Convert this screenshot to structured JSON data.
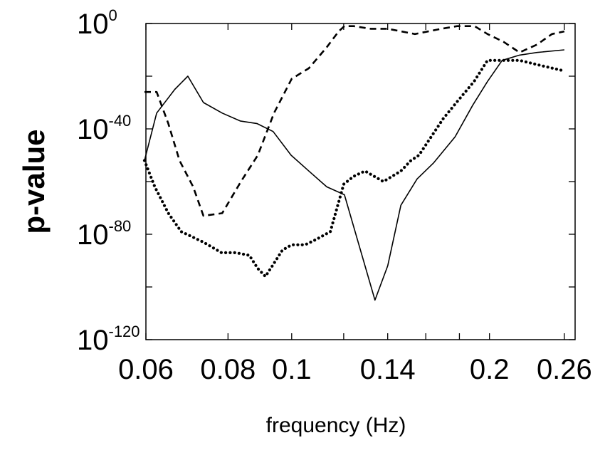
{
  "chart_data": {
    "type": "line",
    "xlabel": "frequency (Hz)",
    "ylabel": "p-value",
    "x_scale": "log",
    "y_scale": "log",
    "xlim": [
      0.06,
      0.27
    ],
    "ylim_exponent": [
      -120,
      0
    ],
    "x_ticks": [
      {
        "value": 0.06,
        "label": "0.06"
      },
      {
        "value": 0.08,
        "label": "0.08"
      },
      {
        "value": 0.1,
        "label": "0.1"
      },
      {
        "value": 0.14,
        "label": "0.14"
      },
      {
        "value": 0.2,
        "label": "0.2"
      },
      {
        "value": 0.26,
        "label": "0.26"
      }
    ],
    "x_minor_ticks": [
      0.12,
      0.16,
      0.18
    ],
    "y_ticks": [
      {
        "exponent": 0,
        "base": "10",
        "exp_label": "0"
      },
      {
        "exponent": -40,
        "base": "10",
        "exp_label": "-40"
      },
      {
        "exponent": -80,
        "base": "10",
        "exp_label": "-80"
      },
      {
        "exponent": -120,
        "base": "10",
        "exp_label": "-120"
      }
    ],
    "y_minor_ticks": [
      -20,
      -60,
      -100
    ],
    "grid": false,
    "legend": "none",
    "series": [
      {
        "style": "solid",
        "points": [
          [
            0.0597,
            -52
          ],
          [
            0.0623,
            -34
          ],
          [
            0.0664,
            -25
          ],
          [
            0.0695,
            -20
          ],
          [
            0.0734,
            -30
          ],
          [
            0.0784,
            -34
          ],
          [
            0.0835,
            -37
          ],
          [
            0.0886,
            -38
          ],
          [
            0.0937,
            -41
          ],
          [
            0.0998,
            -50
          ],
          [
            0.1062,
            -56
          ],
          [
            0.1131,
            -62
          ],
          [
            0.1203,
            -65
          ],
          [
            0.1339,
            -105
          ],
          [
            0.14,
            -92
          ],
          [
            0.1466,
            -69
          ],
          [
            0.1552,
            -59
          ],
          [
            0.1643,
            -53
          ],
          [
            0.1773,
            -43
          ],
          [
            0.1886,
            -31
          ],
          [
            0.1986,
            -22
          ],
          [
            0.2091,
            -14
          ],
          [
            0.2222,
            -12
          ],
          [
            0.2362,
            -11
          ],
          [
            0.26,
            -10
          ]
        ]
      },
      {
        "style": "dashed",
        "points": [
          [
            0.0597,
            -26
          ],
          [
            0.0623,
            -26
          ],
          [
            0.0649,
            -38
          ],
          [
            0.0675,
            -52
          ],
          [
            0.0708,
            -62
          ],
          [
            0.0734,
            -73
          ],
          [
            0.0784,
            -72
          ],
          [
            0.0837,
            -60
          ],
          [
            0.0888,
            -50
          ],
          [
            0.094,
            -34
          ],
          [
            0.1,
            -21
          ],
          [
            0.1062,
            -17
          ],
          [
            0.1131,
            -9
          ],
          [
            0.1179,
            -3
          ],
          [
            0.1203,
            -1
          ],
          [
            0.1243,
            -1
          ],
          [
            0.1318,
            -2
          ],
          [
            0.14,
            -2
          ],
          [
            0.154,
            -4
          ],
          [
            0.169,
            -2
          ],
          [
            0.1786,
            -1
          ],
          [
            0.1898,
            -1
          ],
          [
            0.1986,
            -4
          ],
          [
            0.2103,
            -7
          ],
          [
            0.2222,
            -11
          ],
          [
            0.2362,
            -8
          ],
          [
            0.249,
            -4
          ],
          [
            0.26,
            -3
          ]
        ]
      },
      {
        "style": "dotted",
        "points": [
          [
            0.0597,
            -52
          ],
          [
            0.0619,
            -62
          ],
          [
            0.0649,
            -72
          ],
          [
            0.0679,
            -79
          ],
          [
            0.0734,
            -83
          ],
          [
            0.0782,
            -87
          ],
          [
            0.0822,
            -87
          ],
          [
            0.0862,
            -88
          ],
          [
            0.0888,
            -93
          ],
          [
            0.0912,
            -96
          ],
          [
            0.094,
            -91
          ],
          [
            0.0968,
            -86
          ],
          [
            0.1,
            -84
          ],
          [
            0.1048,
            -84
          ],
          [
            0.1089,
            -82
          ],
          [
            0.1145,
            -79
          ],
          [
            0.12,
            -61
          ],
          [
            0.1243,
            -58
          ],
          [
            0.1293,
            -56
          ],
          [
            0.1379,
            -60
          ],
          [
            0.1466,
            -56
          ],
          [
            0.1519,
            -52
          ],
          [
            0.1562,
            -50
          ],
          [
            0.1702,
            -36
          ],
          [
            0.1809,
            -28
          ],
          [
            0.1895,
            -22
          ],
          [
            0.1986,
            -14
          ],
          [
            0.2222,
            -14
          ],
          [
            0.24,
            -16
          ],
          [
            0.26,
            -18
          ]
        ]
      }
    ]
  }
}
